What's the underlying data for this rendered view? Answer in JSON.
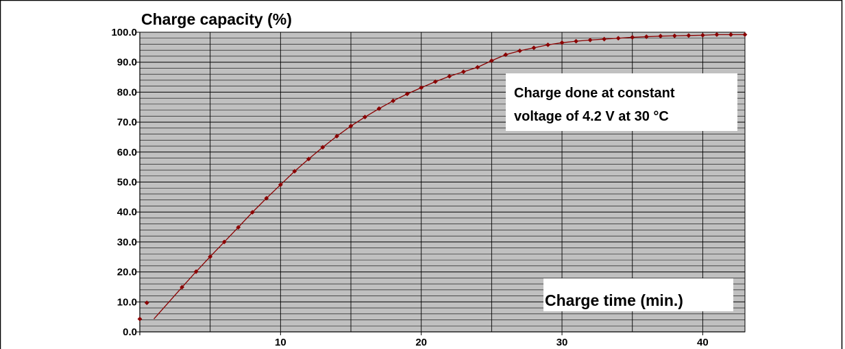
{
  "chart_data": {
    "type": "line",
    "title": "Charge capacity (%)",
    "xlabel": "Charge time (min.)",
    "ylabel": "Charge capacity (%)",
    "annotation_lines": [
      "Charge done at constant",
      "voltage of 4.2 V at 30 °C"
    ],
    "xlim": [
      0,
      43
    ],
    "ylim": [
      0,
      100
    ],
    "x_ticks": [
      10,
      20,
      30,
      40
    ],
    "x_tick_labels": [
      "10",
      "20",
      "30",
      "40"
    ],
    "y_ticks": [
      0,
      10,
      20,
      30,
      40,
      50,
      60,
      70,
      80,
      90,
      100
    ],
    "y_tick_labels": [
      "0.0",
      "10.0",
      "20.0",
      "30.0",
      "40.0",
      "50.0",
      "60.0",
      "70.0",
      "80.0",
      "90.0",
      "100.0"
    ],
    "grid": true,
    "plot_background": "#c0c0c0",
    "series": [
      {
        "color": "#8b0000",
        "x": [
          0,
          0.5,
          3,
          4,
          5,
          6,
          7,
          8,
          9,
          10,
          11,
          12,
          13,
          14,
          15,
          16,
          17,
          18,
          19,
          20,
          21,
          22,
          23,
          24,
          25,
          26,
          27,
          28,
          29,
          30,
          31,
          32,
          33,
          34,
          35,
          36,
          37,
          38,
          39,
          40,
          41,
          42,
          43
        ],
        "y": [
          4.3,
          9.7,
          14.9,
          20.1,
          25.1,
          30.0,
          34.9,
          39.9,
          44.6,
          49.1,
          53.6,
          57.7,
          61.6,
          65.3,
          68.7,
          71.7,
          74.5,
          77.1,
          79.4,
          81.5,
          83.5,
          85.3,
          86.8,
          88.3,
          90.5,
          92.5,
          93.8,
          94.8,
          95.8,
          96.5,
          97.0,
          97.4,
          97.7,
          98.0,
          98.3,
          98.5,
          98.7,
          98.8,
          98.9,
          99.0,
          99.2,
          99.2,
          99.2
        ],
        "line_start_x": 1
      }
    ]
  }
}
